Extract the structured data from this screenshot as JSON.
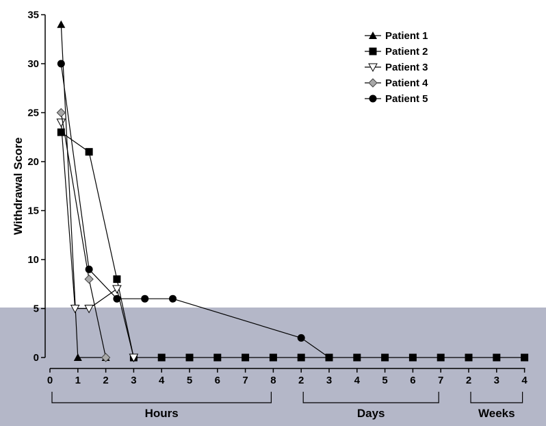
{
  "chart_data": {
    "type": "line",
    "ylabel": "Withdrawal Score",
    "ylim": [
      0,
      35
    ],
    "yticks": [
      0,
      5,
      10,
      15,
      20,
      25,
      30,
      35
    ],
    "x_axis_groups": [
      {
        "label": "Hours",
        "ticks": [
          "0",
          "1",
          "2",
          "3",
          "4",
          "5",
          "6",
          "7",
          "8"
        ]
      },
      {
        "label": "Days",
        "ticks": [
          "2",
          "3",
          "4",
          "5",
          "6",
          "7"
        ]
      },
      {
        "label": "Weeks",
        "ticks": [
          "2",
          "3",
          "4"
        ]
      }
    ],
    "x_note": "x values are positions on a piecewise axis: 0-8 = hours 0-8, 9-14 = days 2-7, 15-17 = weeks 2-4",
    "legend": {
      "position": "top-right"
    },
    "series": [
      {
        "name": "Patient 1",
        "marker": "triangle-up-filled",
        "points": [
          [
            0.4,
            34
          ],
          [
            1,
            0
          ],
          [
            2,
            0
          ]
        ]
      },
      {
        "name": "Patient 2",
        "marker": "square-filled",
        "points": [
          [
            0.4,
            23
          ],
          [
            1.4,
            21
          ],
          [
            2.4,
            8
          ],
          [
            3,
            0
          ],
          [
            4,
            0
          ],
          [
            5,
            0
          ],
          [
            6,
            0
          ],
          [
            7,
            0
          ],
          [
            8,
            0
          ],
          [
            9,
            0
          ],
          [
            10,
            0
          ],
          [
            11,
            0
          ],
          [
            12,
            0
          ],
          [
            13,
            0
          ],
          [
            14,
            0
          ],
          [
            15,
            0
          ],
          [
            16,
            0
          ],
          [
            17,
            0
          ]
        ]
      },
      {
        "name": "Patient 3",
        "marker": "triangle-down-open",
        "points": [
          [
            0.4,
            24
          ],
          [
            0.9,
            5
          ],
          [
            1.4,
            5
          ],
          [
            2.4,
            7
          ],
          [
            3,
            0
          ]
        ]
      },
      {
        "name": "Patient 4",
        "marker": "diamond-gray",
        "points": [
          [
            0.4,
            25
          ],
          [
            1.4,
            8
          ],
          [
            2,
            0
          ]
        ]
      },
      {
        "name": "Patient 5",
        "marker": "circle-filled",
        "points": [
          [
            0.4,
            30
          ],
          [
            1.4,
            9
          ],
          [
            2.4,
            6
          ],
          [
            3.4,
            6
          ],
          [
            4.4,
            6
          ],
          [
            9,
            2
          ],
          [
            10,
            0
          ]
        ]
      }
    ]
  }
}
